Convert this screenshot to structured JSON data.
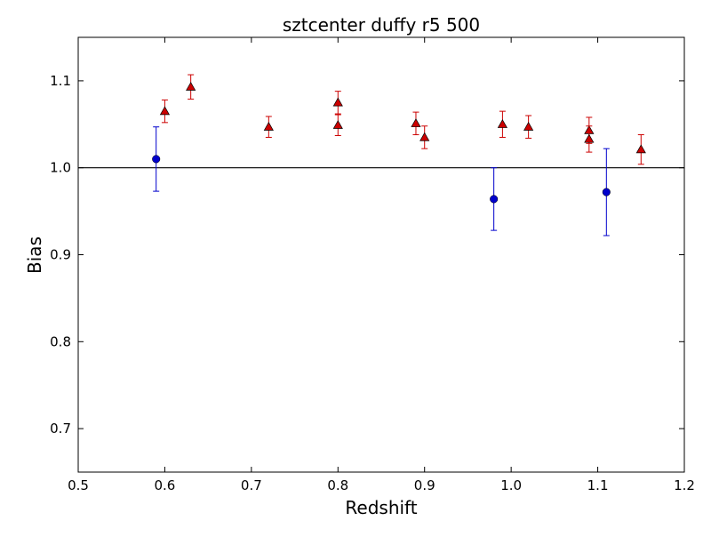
{
  "chart_data": {
    "type": "scatter",
    "title": "sztcenter duffy r5 500",
    "xlabel": "Redshift",
    "ylabel": "Bias",
    "xlim": [
      0.5,
      1.2
    ],
    "ylim": [
      0.65,
      1.15
    ],
    "xticks": [
      0.5,
      0.6,
      0.7,
      0.8,
      0.9,
      1.0,
      1.1,
      1.2
    ],
    "xtick_labels": [
      "0.5",
      "0.6",
      "0.7",
      "0.8",
      "0.9",
      "1.0",
      "1.1",
      "1.2"
    ],
    "yticks": [
      0.7,
      0.8,
      0.9,
      1.0,
      1.1
    ],
    "ytick_labels": [
      "0.7",
      "0.8",
      "0.9",
      "1.0",
      "1.1"
    ],
    "reference_line": {
      "y": 1.0,
      "color": "#000000"
    },
    "grid": false,
    "series": [
      {
        "marker": "circle",
        "color": "#0000cc",
        "points": [
          {
            "x": 0.59,
            "y": 1.01,
            "err": 0.037
          },
          {
            "x": 0.98,
            "y": 0.964,
            "err": 0.036
          },
          {
            "x": 1.11,
            "y": 0.972,
            "err": 0.05
          }
        ]
      },
      {
        "marker": "triangle",
        "color": "#cc0000",
        "points": [
          {
            "x": 0.6,
            "y": 1.065,
            "err": 0.013
          },
          {
            "x": 0.63,
            "y": 1.093,
            "err": 0.014
          },
          {
            "x": 0.72,
            "y": 1.047,
            "err": 0.012
          },
          {
            "x": 0.8,
            "y": 1.075,
            "err": 0.013
          },
          {
            "x": 0.8,
            "y": 1.049,
            "err": 0.012
          },
          {
            "x": 0.89,
            "y": 1.051,
            "err": 0.013
          },
          {
            "x": 0.9,
            "y": 1.035,
            "err": 0.013
          },
          {
            "x": 0.99,
            "y": 1.05,
            "err": 0.015
          },
          {
            "x": 1.02,
            "y": 1.047,
            "err": 0.013
          },
          {
            "x": 1.09,
            "y": 1.043,
            "err": 0.015
          },
          {
            "x": 1.09,
            "y": 1.033,
            "err": 0.015
          },
          {
            "x": 1.15,
            "y": 1.021,
            "err": 0.017
          }
        ]
      }
    ]
  }
}
